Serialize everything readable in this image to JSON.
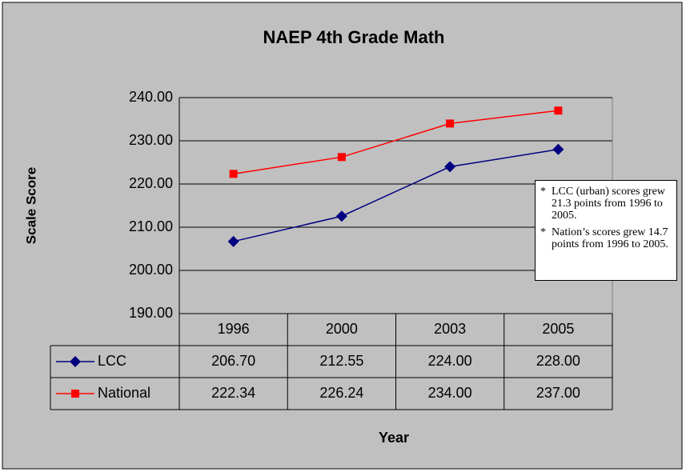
{
  "chart_data": {
    "type": "line",
    "title": "NAEP 4th Grade Math",
    "x_label": "Year",
    "y_label": "Scale Score",
    "categories": [
      "1996",
      "2000",
      "2003",
      "2005"
    ],
    "series": [
      {
        "name": "LCC",
        "color": "#000080",
        "marker": "diamond",
        "values": [
          206.7,
          212.55,
          224,
          228
        ],
        "value_labels": [
          "206.70",
          "212.55",
          "224.00",
          "228.00"
        ]
      },
      {
        "name": "National",
        "color": "#ff0000",
        "marker": "square",
        "values": [
          222.34,
          226.24,
          234,
          237
        ],
        "value_labels": [
          "222.34",
          "226.24",
          "234.00",
          "237.00"
        ]
      }
    ],
    "ylim": [
      190,
      240
    ],
    "yticks": [
      {
        "value": 190,
        "label": "190.00"
      },
      {
        "value": 200,
        "label": "200.00"
      },
      {
        "value": 210,
        "label": "210.00"
      },
      {
        "value": 220,
        "label": "220.00"
      },
      {
        "value": 230,
        "label": "230.00"
      },
      {
        "value": 240,
        "label": "240.00"
      }
    ],
    "grid": true,
    "annotations": [
      "LCC (urban) scores grew 21.3 points from 1996 to 2005.",
      "Nation’s scores grew 14.7 points from 1996 to 2005."
    ]
  }
}
